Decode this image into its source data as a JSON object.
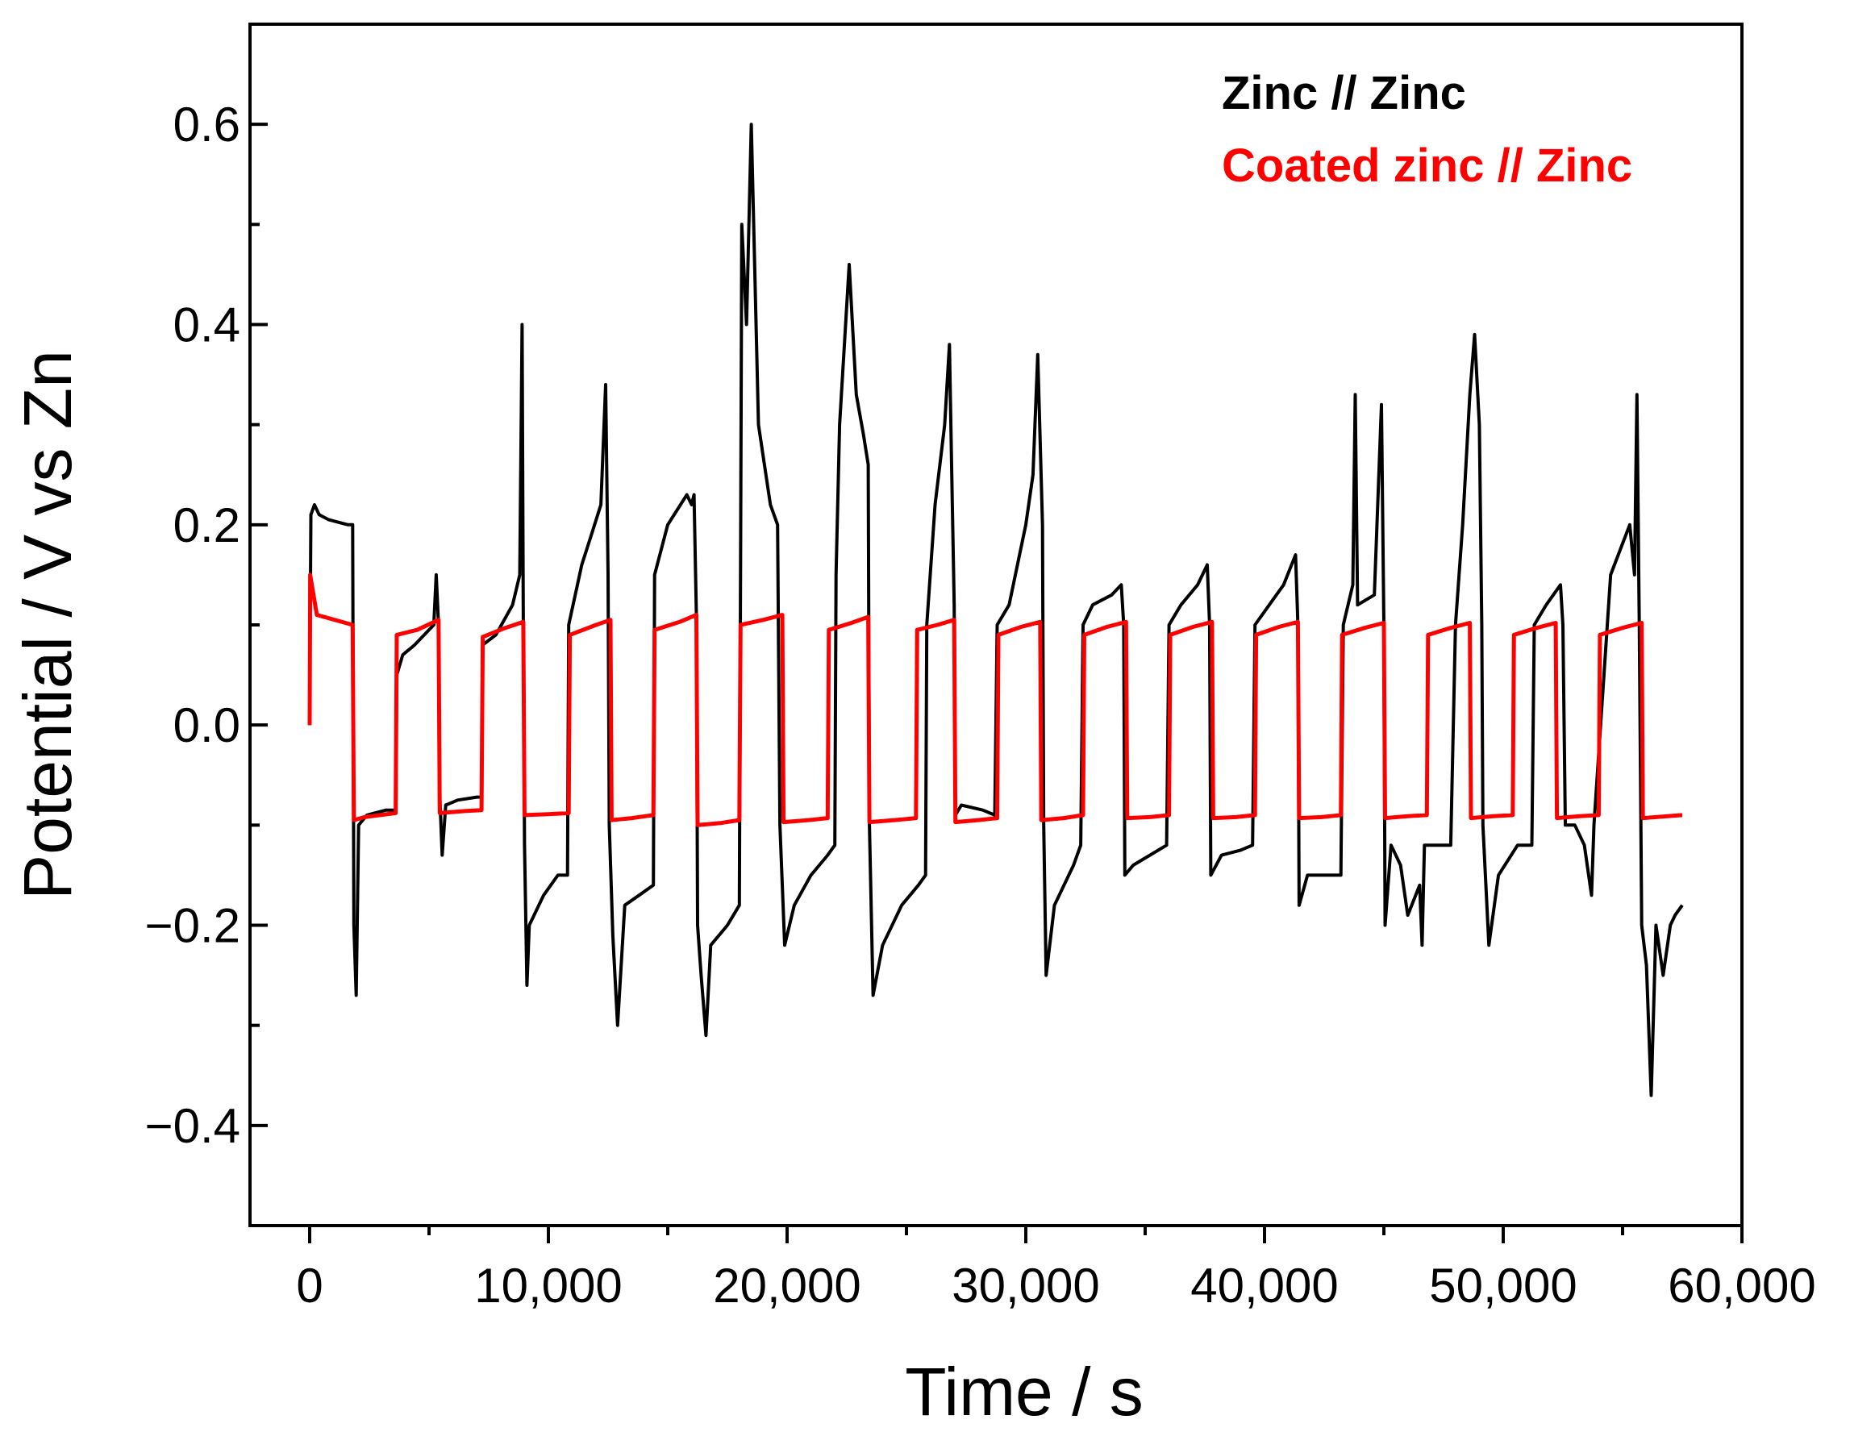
{
  "chart_data": {
    "type": "line",
    "title": "",
    "xlabel": "Time / s",
    "ylabel": "Potential / V vs Zn",
    "xlim": [
      -2500,
      60000
    ],
    "ylim": [
      -0.5,
      0.7
    ],
    "x_ticks": [
      0,
      10000,
      20000,
      30000,
      40000,
      50000,
      60000
    ],
    "x_tick_labels": [
      "0",
      "10,000",
      "20,000",
      "30,000",
      "40,000",
      "50,000",
      "60,000"
    ],
    "y_ticks": [
      -0.4,
      -0.2,
      0.0,
      0.2,
      0.4,
      0.6
    ],
    "y_tick_labels": [
      "−0.4",
      "−0.2",
      "0.0",
      "0.2",
      "0.4",
      "0.6"
    ],
    "grid": false,
    "legend_position": "top-right",
    "series": [
      {
        "name": "Zinc // Zinc",
        "color": "#000000",
        "points": [
          [
            0,
            0
          ],
          [
            50,
            0.21
          ],
          [
            200,
            0.22
          ],
          [
            400,
            0.21
          ],
          [
            800,
            0.205
          ],
          [
            1600,
            0.2
          ],
          [
            1800,
            0.2
          ],
          [
            1850,
            -0.2
          ],
          [
            1950,
            -0.27
          ],
          [
            2050,
            -0.1
          ],
          [
            2400,
            -0.09
          ],
          [
            3200,
            -0.085
          ],
          [
            3600,
            -0.085
          ],
          [
            3650,
            0.05
          ],
          [
            3900,
            0.07
          ],
          [
            4400,
            0.08
          ],
          [
            5200,
            0.1
          ],
          [
            5300,
            0.15
          ],
          [
            5400,
            0.1
          ],
          [
            5450,
            -0.07
          ],
          [
            5550,
            -0.13
          ],
          [
            5700,
            -0.08
          ],
          [
            6200,
            -0.075
          ],
          [
            7000,
            -0.072
          ],
          [
            7200,
            -0.072
          ],
          [
            7250,
            0.08
          ],
          [
            7800,
            0.09
          ],
          [
            8500,
            0.12
          ],
          [
            8800,
            0.15
          ],
          [
            8900,
            0.4
          ],
          [
            8950,
            0.1
          ],
          [
            9000,
            -0.12
          ],
          [
            9100,
            -0.26
          ],
          [
            9200,
            -0.2
          ],
          [
            9800,
            -0.17
          ],
          [
            10400,
            -0.15
          ],
          [
            10800,
            -0.15
          ],
          [
            10850,
            0.1
          ],
          [
            11400,
            0.16
          ],
          [
            11800,
            0.19
          ],
          [
            12200,
            0.22
          ],
          [
            12400,
            0.34
          ],
          [
            12500,
            0.15
          ],
          [
            12550,
            -0.1
          ],
          [
            12700,
            -0.21
          ],
          [
            12900,
            -0.3
          ],
          [
            13200,
            -0.18
          ],
          [
            13800,
            -0.17
          ],
          [
            14400,
            -0.16
          ],
          [
            14450,
            0.15
          ],
          [
            15000,
            0.2
          ],
          [
            15800,
            0.23
          ],
          [
            16000,
            0.22
          ],
          [
            16100,
            0.23
          ],
          [
            16200,
            0.11
          ],
          [
            16250,
            -0.2
          ],
          [
            16400,
            -0.25
          ],
          [
            16600,
            -0.31
          ],
          [
            16800,
            -0.22
          ],
          [
            17500,
            -0.2
          ],
          [
            18000,
            -0.18
          ],
          [
            18100,
            0.5
          ],
          [
            18300,
            0.4
          ],
          [
            18500,
            0.6
          ],
          [
            18800,
            0.3
          ],
          [
            19300,
            0.22
          ],
          [
            19600,
            0.2
          ],
          [
            19700,
            -0.1
          ],
          [
            19900,
            -0.22
          ],
          [
            20300,
            -0.18
          ],
          [
            21000,
            -0.15
          ],
          [
            21700,
            -0.13
          ],
          [
            22000,
            -0.12
          ],
          [
            22050,
            0.15
          ],
          [
            22200,
            0.3
          ],
          [
            22600,
            0.46
          ],
          [
            22900,
            0.33
          ],
          [
            23200,
            0.29
          ],
          [
            23400,
            0.26
          ],
          [
            23450,
            -0.1
          ],
          [
            23600,
            -0.27
          ],
          [
            24000,
            -0.22
          ],
          [
            24800,
            -0.18
          ],
          [
            25500,
            -0.16
          ],
          [
            25800,
            -0.15
          ],
          [
            25850,
            0.1
          ],
          [
            26200,
            0.22
          ],
          [
            26600,
            0.3
          ],
          [
            26800,
            0.38
          ],
          [
            26900,
            0.25
          ],
          [
            27000,
            0.12
          ],
          [
            27050,
            -0.09
          ],
          [
            27300,
            -0.08
          ],
          [
            28200,
            -0.085
          ],
          [
            28700,
            -0.09
          ],
          [
            28800,
            0.1
          ],
          [
            29300,
            0.12
          ],
          [
            30000,
            0.2
          ],
          [
            30300,
            0.25
          ],
          [
            30500,
            0.37
          ],
          [
            30700,
            0.2
          ],
          [
            30750,
            -0.1
          ],
          [
            30850,
            -0.25
          ],
          [
            31200,
            -0.18
          ],
          [
            32000,
            -0.14
          ],
          [
            32300,
            -0.12
          ],
          [
            32400,
            0.1
          ],
          [
            32800,
            0.12
          ],
          [
            33600,
            0.13
          ],
          [
            34000,
            0.14
          ],
          [
            34100,
            0.1
          ],
          [
            34150,
            -0.15
          ],
          [
            34500,
            -0.14
          ],
          [
            35200,
            -0.13
          ],
          [
            35900,
            -0.12
          ],
          [
            36000,
            0.1
          ],
          [
            36500,
            0.12
          ],
          [
            37200,
            0.14
          ],
          [
            37600,
            0.16
          ],
          [
            37700,
            0.1
          ],
          [
            37750,
            -0.15
          ],
          [
            38200,
            -0.13
          ],
          [
            39000,
            -0.125
          ],
          [
            39500,
            -0.12
          ],
          [
            39600,
            0.1
          ],
          [
            40200,
            0.12
          ],
          [
            40800,
            0.14
          ],
          [
            41300,
            0.17
          ],
          [
            41400,
            0.1
          ],
          [
            41450,
            -0.18
          ],
          [
            41800,
            -0.15
          ],
          [
            42500,
            -0.15
          ],
          [
            43200,
            -0.15
          ],
          [
            43300,
            0.1
          ],
          [
            43700,
            0.14
          ],
          [
            43800,
            0.33
          ],
          [
            43900,
            0.12
          ],
          [
            44600,
            0.13
          ],
          [
            44900,
            0.32
          ],
          [
            45000,
            0.1
          ],
          [
            45050,
            -0.2
          ],
          [
            45300,
            -0.12
          ],
          [
            45700,
            -0.14
          ],
          [
            46000,
            -0.19
          ],
          [
            46500,
            -0.16
          ],
          [
            46600,
            -0.22
          ],
          [
            46700,
            -0.12
          ],
          [
            47300,
            -0.12
          ],
          [
            47800,
            -0.12
          ],
          [
            48000,
            0.1
          ],
          [
            48300,
            0.2
          ],
          [
            48600,
            0.33
          ],
          [
            48800,
            0.39
          ],
          [
            49000,
            0.3
          ],
          [
            49100,
            0.1
          ],
          [
            49150,
            -0.1
          ],
          [
            49400,
            -0.22
          ],
          [
            49800,
            -0.15
          ],
          [
            50600,
            -0.12
          ],
          [
            51200,
            -0.12
          ],
          [
            51300,
            0.1
          ],
          [
            51800,
            0.12
          ],
          [
            52400,
            0.14
          ],
          [
            52500,
            0.1
          ],
          [
            52600,
            -0.1
          ],
          [
            53000,
            -0.1
          ],
          [
            53400,
            -0.12
          ],
          [
            53700,
            -0.17
          ],
          [
            53800,
            -0.1
          ],
          [
            54500,
            0.15
          ],
          [
            55300,
            0.2
          ],
          [
            55500,
            0.15
          ],
          [
            55600,
            0.33
          ],
          [
            55700,
            0.1
          ],
          [
            55800,
            -0.2
          ],
          [
            56000,
            -0.24
          ],
          [
            56200,
            -0.37
          ],
          [
            56400,
            -0.2
          ],
          [
            56700,
            -0.25
          ],
          [
            57000,
            -0.2
          ],
          [
            57200,
            -0.19
          ],
          [
            57500,
            -0.18
          ]
        ]
      },
      {
        "name": "Coated zinc // Zinc",
        "color": "#ff0000",
        "points": [
          [
            0,
            0
          ],
          [
            20,
            0.15
          ],
          [
            300,
            0.11
          ],
          [
            1800,
            0.1
          ],
          [
            1850,
            -0.095
          ],
          [
            2300,
            -0.092
          ],
          [
            3600,
            -0.088
          ],
          [
            3650,
            0.09
          ],
          [
            4500,
            0.095
          ],
          [
            5400,
            0.105
          ],
          [
            5450,
            -0.088
          ],
          [
            6500,
            -0.086
          ],
          [
            7200,
            -0.085
          ],
          [
            7250,
            0.088
          ],
          [
            8200,
            0.097
          ],
          [
            8950,
            0.103
          ],
          [
            9000,
            -0.09
          ],
          [
            10000,
            -0.089
          ],
          [
            10850,
            -0.088
          ],
          [
            10900,
            0.09
          ],
          [
            12000,
            0.1
          ],
          [
            12600,
            0.105
          ],
          [
            12650,
            -0.095
          ],
          [
            13500,
            -0.093
          ],
          [
            14400,
            -0.09
          ],
          [
            14450,
            0.095
          ],
          [
            15500,
            0.103
          ],
          [
            16200,
            0.11
          ],
          [
            16250,
            -0.1
          ],
          [
            17200,
            -0.098
          ],
          [
            18000,
            -0.095
          ],
          [
            18050,
            0.1
          ],
          [
            19000,
            0.105
          ],
          [
            19800,
            0.11
          ],
          [
            19850,
            -0.097
          ],
          [
            20900,
            -0.095
          ],
          [
            21700,
            -0.093
          ],
          [
            21750,
            0.095
          ],
          [
            22700,
            0.102
          ],
          [
            23400,
            0.108
          ],
          [
            23450,
            -0.097
          ],
          [
            24500,
            -0.095
          ],
          [
            25400,
            -0.093
          ],
          [
            25450,
            0.095
          ],
          [
            26300,
            0.1
          ],
          [
            27000,
            0.105
          ],
          [
            27050,
            -0.097
          ],
          [
            28000,
            -0.095
          ],
          [
            28800,
            -0.093
          ],
          [
            28850,
            0.09
          ],
          [
            29800,
            0.098
          ],
          [
            30600,
            0.103
          ],
          [
            30650,
            -0.095
          ],
          [
            31600,
            -0.093
          ],
          [
            32400,
            -0.09
          ],
          [
            32450,
            0.09
          ],
          [
            33400,
            0.098
          ],
          [
            34200,
            0.103
          ],
          [
            34250,
            -0.093
          ],
          [
            35200,
            -0.092
          ],
          [
            36000,
            -0.09
          ],
          [
            36050,
            0.09
          ],
          [
            37000,
            0.098
          ],
          [
            37800,
            0.103
          ],
          [
            37850,
            -0.093
          ],
          [
            38800,
            -0.092
          ],
          [
            39600,
            -0.09
          ],
          [
            39650,
            0.09
          ],
          [
            40600,
            0.098
          ],
          [
            41400,
            0.103
          ],
          [
            41450,
            -0.093
          ],
          [
            42400,
            -0.092
          ],
          [
            43200,
            -0.09
          ],
          [
            43250,
            0.09
          ],
          [
            44200,
            0.097
          ],
          [
            45000,
            0.102
          ],
          [
            45050,
            -0.093
          ],
          [
            46000,
            -0.091
          ],
          [
            46800,
            -0.09
          ],
          [
            46850,
            0.09
          ],
          [
            47800,
            0.097
          ],
          [
            48600,
            0.102
          ],
          [
            48650,
            -0.093
          ],
          [
            49600,
            -0.091
          ],
          [
            50400,
            -0.09
          ],
          [
            50450,
            0.09
          ],
          [
            51400,
            0.097
          ],
          [
            52200,
            0.102
          ],
          [
            52250,
            -0.093
          ],
          [
            53200,
            -0.091
          ],
          [
            54000,
            -0.09
          ],
          [
            54050,
            0.09
          ],
          [
            55000,
            0.097
          ],
          [
            55800,
            0.102
          ],
          [
            55850,
            -0.093
          ],
          [
            57500,
            -0.09
          ]
        ]
      }
    ]
  }
}
